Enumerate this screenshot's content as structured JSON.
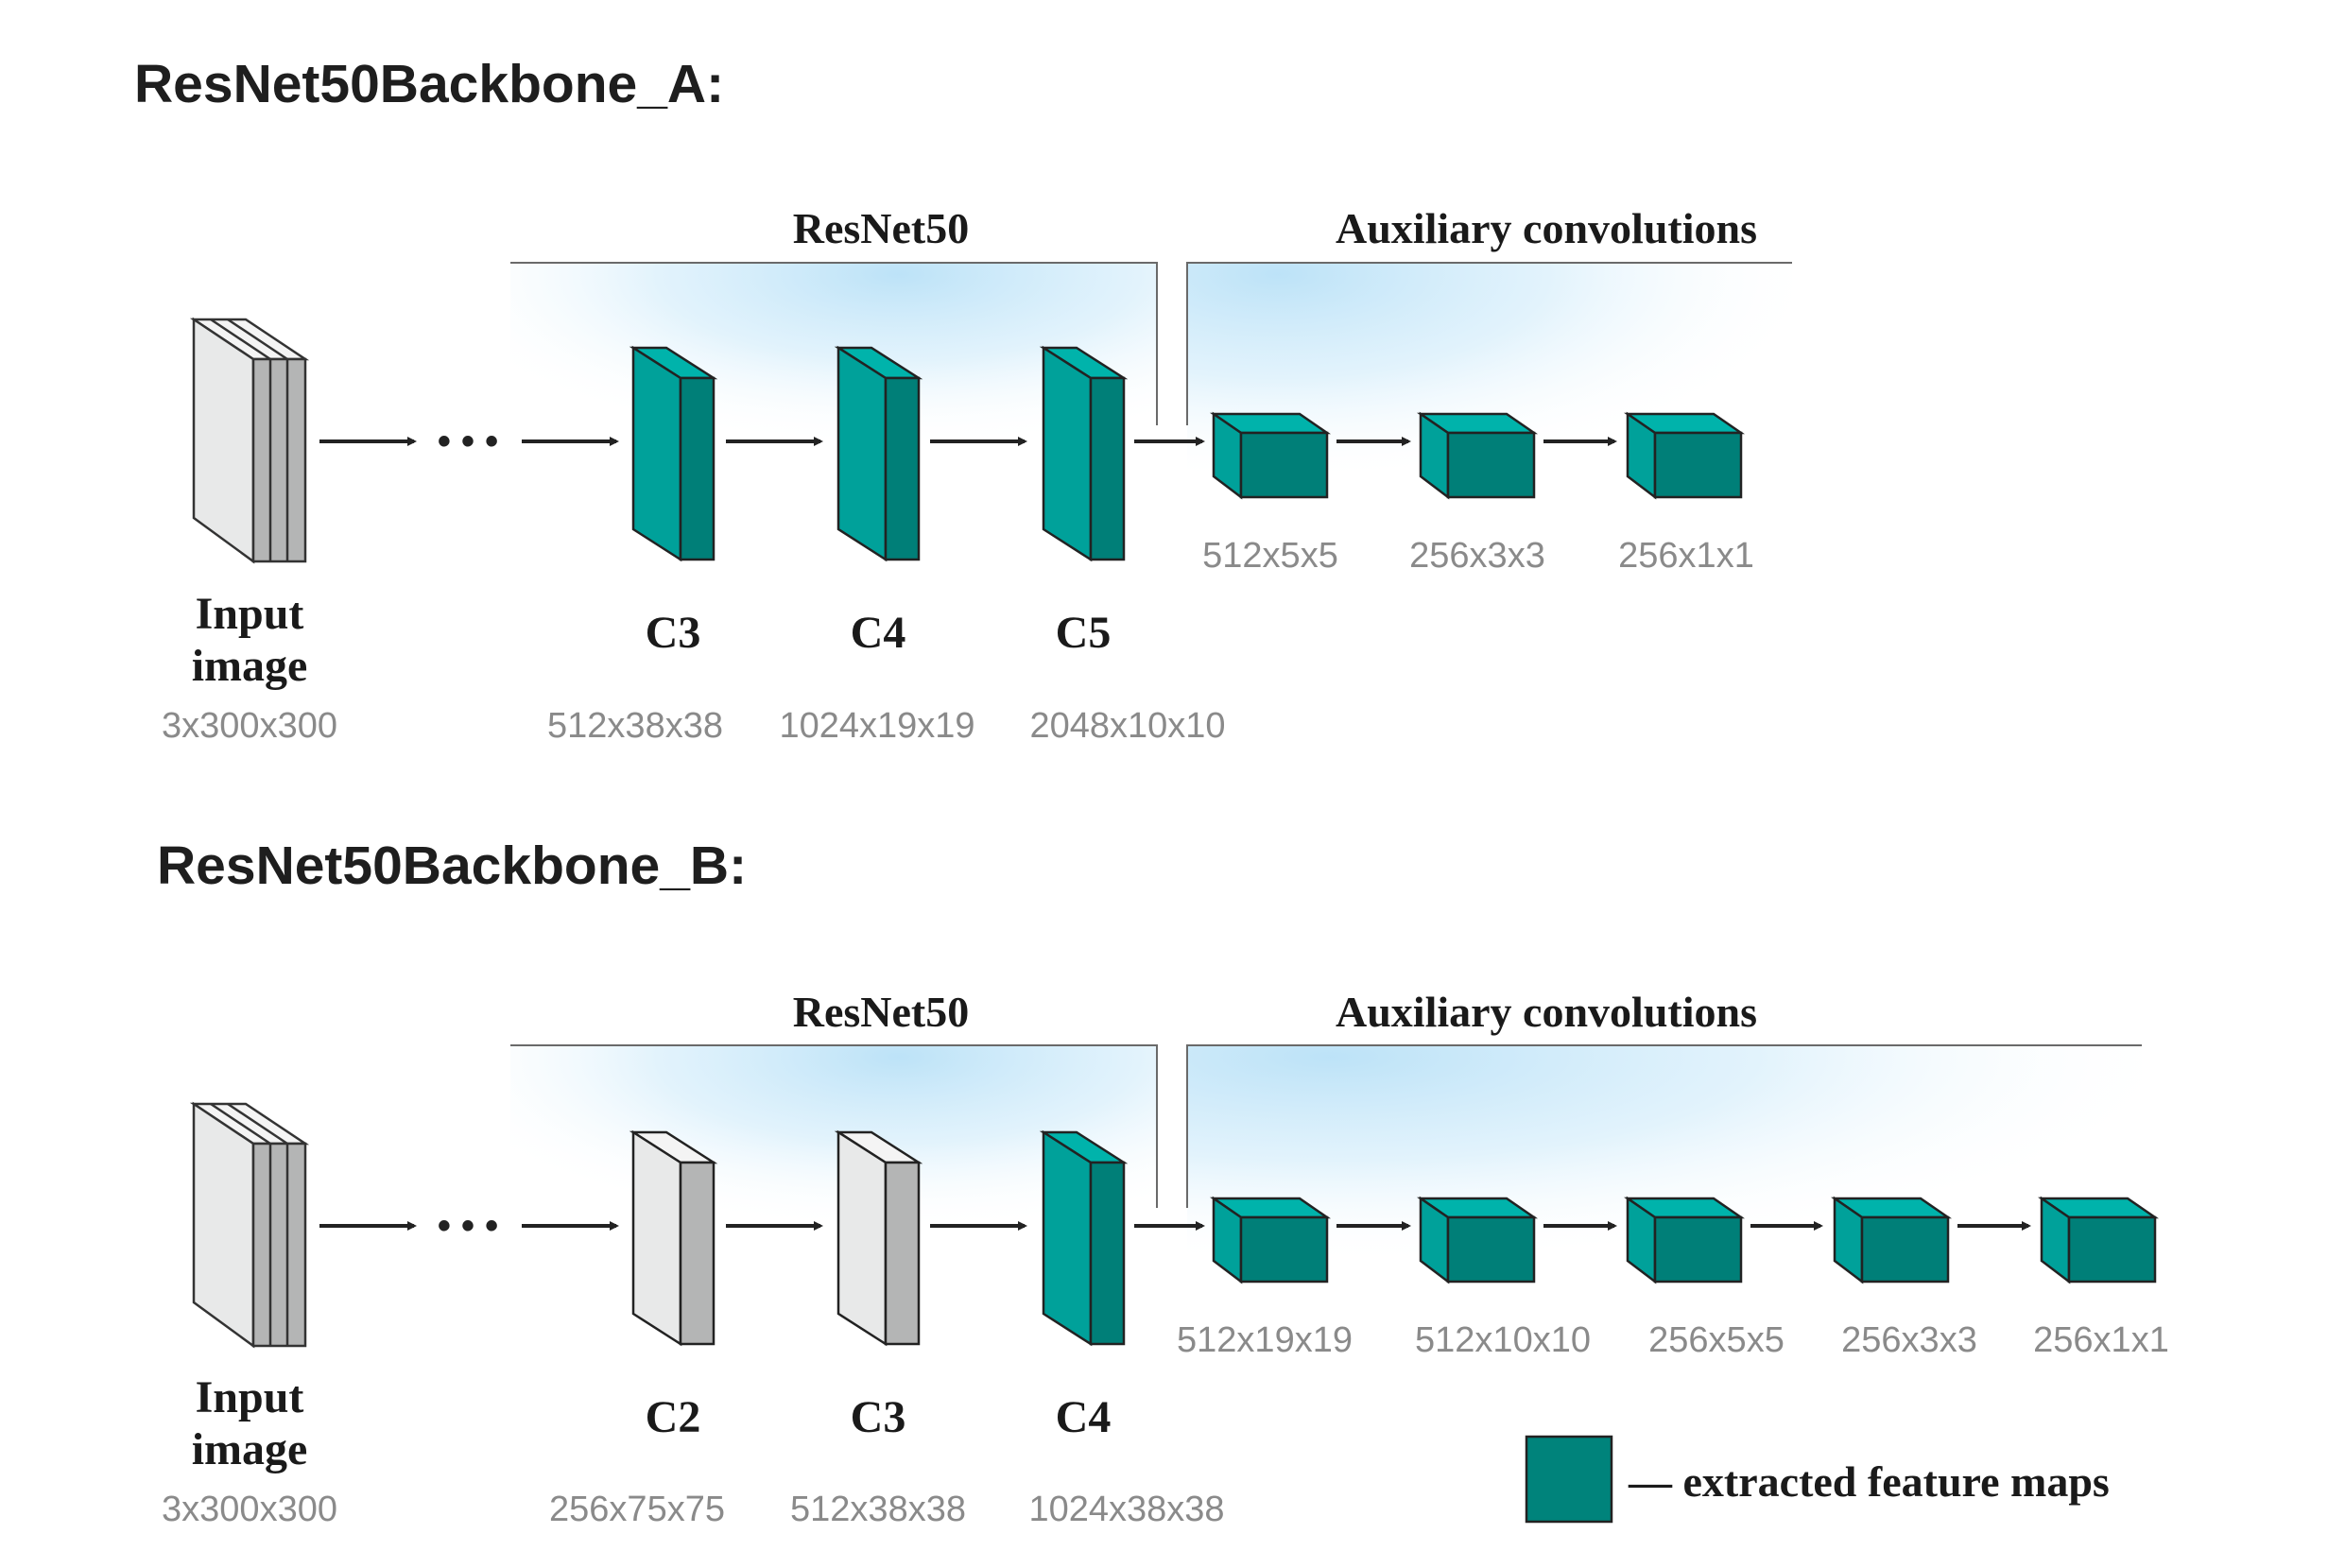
{
  "panels": {
    "a": {
      "title": "ResNet50Backbone_A:",
      "resnet_label": "ResNet50",
      "aux_label": "Auxiliary convolutions",
      "input": {
        "label_line1": "Input",
        "label_line2": "image",
        "dims": "3x300x300"
      },
      "dots": "• • •",
      "backbone": [
        {
          "name": "C3",
          "dims": "512x38x38",
          "extracted": true
        },
        {
          "name": "C4",
          "dims": "1024x19x19",
          "extracted": true
        },
        {
          "name": "C5",
          "dims": "2048x10x10",
          "extracted": true
        }
      ],
      "aux": [
        "512x5x5",
        "256x3x3",
        "256x1x1"
      ]
    },
    "b": {
      "title": "ResNet50Backbone_B:",
      "resnet_label": "ResNet50",
      "aux_label": "Auxiliary convolutions",
      "input": {
        "label_line1": "Input",
        "label_line2": "image",
        "dims": "3x300x300"
      },
      "dots": "• • •",
      "backbone": [
        {
          "name": "C2",
          "dims": "256x75x75",
          "extracted": false
        },
        {
          "name": "C3",
          "dims": "512x38x38",
          "extracted": false
        },
        {
          "name": "C4",
          "dims": "1024x38x38",
          "extracted": true
        }
      ],
      "aux": [
        "512x19x19",
        "512x10x10",
        "256x5x5",
        "256x3x3",
        "256x1x1"
      ]
    }
  },
  "legend": {
    "text": "— extracted feature maps"
  },
  "colors": {
    "teal_front": "#00a19a",
    "teal_side": "#007f78",
    "teal_top": "#00b3ab",
    "gray_front": "#e8e9e9",
    "gray_side": "#b4b5b5",
    "gray_top": "#f4f4f4",
    "glow": "#b9e1f7",
    "arrow": "#222222"
  }
}
